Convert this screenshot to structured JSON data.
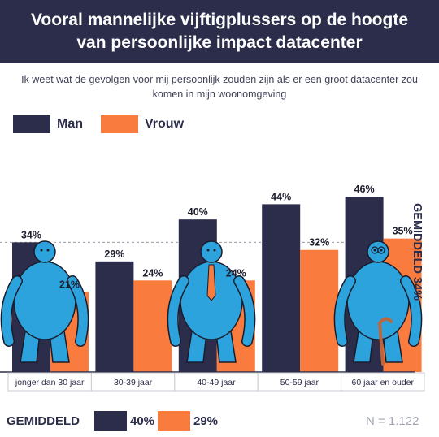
{
  "header": {
    "title_line1": "Vooral mannelijke vijftigplussers op de hoogte",
    "title_line2": "van persoonlijke impact datacenter"
  },
  "subtitle": {
    "line1": "Ik weet wat de gevolgen voor mij persoonlijk zouden zijn als er een groot datacenter zou",
    "line2": "komen in mijn woonomgeving"
  },
  "legend": {
    "man": "Man",
    "vrouw": "Vrouw"
  },
  "colors": {
    "man": "#2b2d4a",
    "vrouw": "#f97b3d",
    "figure": "#2da3dd",
    "header_bg": "#2b2d4a"
  },
  "average_label": "GEMIDDELD 34%",
  "footer": {
    "gemiddeld_label": "GEMIDDELD",
    "man_avg": "40%",
    "vrouw_avg": "29%",
    "n_label": "N = 1.122"
  },
  "figures": [
    "young-man-figure-icon",
    "middle-aged-man-figure-icon",
    "elderly-man-with-cane-figure-icon"
  ],
  "chart_data": {
    "type": "bar",
    "categories": [
      "jonger dan 30 jaar",
      "30-39 jaar",
      "40-49 jaar",
      "50-59 jaar",
      "60 jaar en ouder"
    ],
    "series": [
      {
        "name": "Man",
        "values": [
          34,
          29,
          40,
          44,
          46
        ],
        "labels": [
          "34%",
          "29%",
          "40%",
          "44%",
          "46%"
        ]
      },
      {
        "name": "Vrouw",
        "values": [
          21,
          24,
          24,
          32,
          35
        ],
        "labels": [
          "21%",
          "24%",
          "24%",
          "32%",
          "35%"
        ]
      }
    ],
    "average": 34,
    "ylim": [
      0,
      46
    ]
  }
}
